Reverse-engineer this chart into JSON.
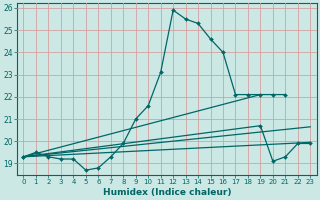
{
  "title": "",
  "xlabel": "Humidex (Indice chaleur)",
  "background_color": "#cce8e4",
  "grid_color": "#d4a0a0",
  "line_color": "#006666",
  "xlim": [
    -0.5,
    23.5
  ],
  "ylim": [
    18.5,
    26.2
  ],
  "xticks": [
    0,
    1,
    2,
    3,
    4,
    5,
    6,
    7,
    8,
    9,
    10,
    11,
    12,
    13,
    14,
    15,
    16,
    17,
    18,
    19,
    20,
    21,
    22,
    23
  ],
  "yticks": [
    19,
    20,
    21,
    22,
    23,
    24,
    25,
    26
  ],
  "series": [
    {
      "x": [
        0,
        1,
        2,
        3,
        4,
        5,
        6,
        7,
        8,
        9,
        10,
        11,
        12,
        13,
        14,
        15,
        16,
        17,
        18,
        19,
        20,
        21
      ],
      "y": [
        19.3,
        19.5,
        19.3,
        19.2,
        19.2,
        18.7,
        18.8,
        19.3,
        19.9,
        21.0,
        21.6,
        23.1,
        25.9,
        25.5,
        25.3,
        24.6,
        24.0,
        22.1,
        22.1,
        22.1,
        22.1,
        22.1
      ],
      "has_markers": true
    },
    {
      "x": [
        0,
        19
      ],
      "y": [
        19.3,
        22.1
      ],
      "has_markers": false
    },
    {
      "x": [
        0,
        23
      ],
      "y": [
        19.3,
        20.65
      ],
      "has_markers": false
    },
    {
      "x": [
        0,
        23
      ],
      "y": [
        19.3,
        19.95
      ],
      "has_markers": false
    },
    {
      "x": [
        0,
        19,
        20,
        21,
        22,
        23
      ],
      "y": [
        19.3,
        20.7,
        19.1,
        19.3,
        19.9,
        19.9
      ],
      "has_markers": true
    }
  ]
}
